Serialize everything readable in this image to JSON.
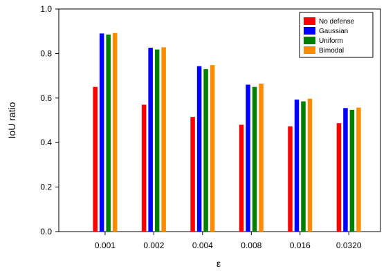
{
  "chart_data": {
    "type": "bar",
    "title": "",
    "xlabel": "ε",
    "ylabel": "IoU ratio",
    "categories": [
      "0.001",
      "0.002",
      "0.004",
      "0.008",
      "0.016",
      "0.0320"
    ],
    "series": [
      {
        "name": "No defense",
        "color": "#ff0000",
        "values": [
          0.65,
          0.57,
          0.515,
          0.48,
          0.473,
          0.487
        ]
      },
      {
        "name": "Gaussian",
        "color": "#0000ff",
        "values": [
          0.89,
          0.826,
          0.743,
          0.66,
          0.593,
          0.555
        ]
      },
      {
        "name": "Uniform",
        "color": "#008000",
        "values": [
          0.885,
          0.818,
          0.73,
          0.65,
          0.585,
          0.547
        ]
      },
      {
        "name": "Bimodal",
        "color": "#ff8c00",
        "values": [
          0.892,
          0.828,
          0.748,
          0.665,
          0.597,
          0.557
        ]
      }
    ],
    "ylim": [
      0,
      1.0
    ],
    "yticks": [
      "0.0",
      "0.2",
      "0.4",
      "0.6",
      "0.8",
      "1.0"
    ],
    "grid": false,
    "legend_position": "top-right"
  }
}
